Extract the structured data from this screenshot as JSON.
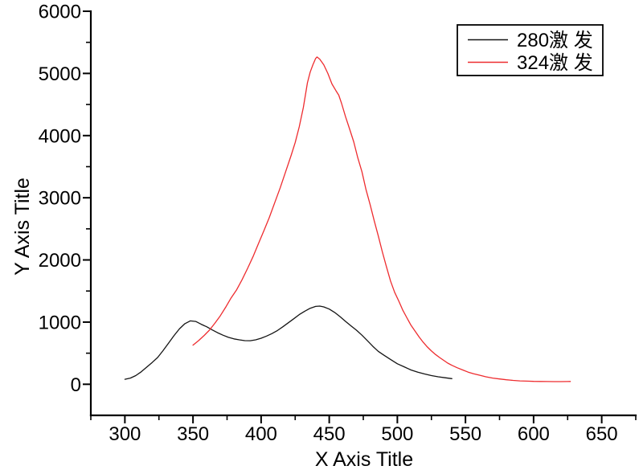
{
  "figure": {
    "background": "#ffffff"
  },
  "chart_data": {
    "type": "line",
    "title": "",
    "xlabel": "X Axis Title",
    "ylabel": "Y Axis Title",
    "xlim": [
      275,
      675
    ],
    "ylim": [
      -500,
      6000
    ],
    "x_major_ticks": [
      300,
      350,
      400,
      450,
      500,
      550,
      600,
      650
    ],
    "x_minor_tick_step": 25,
    "y_major_ticks": [
      0,
      1000,
      2000,
      3000,
      4000,
      5000,
      6000
    ],
    "y_minor_tick_step": 500,
    "grid": false,
    "axis_color": "#000000",
    "legend": {
      "position": "top-right",
      "border_color": "#000000",
      "background": "#ffffff",
      "entries": [
        {
          "label": "280激 发",
          "color": "#141414"
        },
        {
          "label": "324激 发",
          "color": "#ee2c2f"
        }
      ]
    },
    "series": [
      {
        "name": "280激 发",
        "color": "#141414",
        "points": [
          [
            300,
            80
          ],
          [
            304,
            100
          ],
          [
            308,
            140
          ],
          [
            312,
            200
          ],
          [
            316,
            275
          ],
          [
            320,
            350
          ],
          [
            324,
            430
          ],
          [
            328,
            540
          ],
          [
            332,
            660
          ],
          [
            336,
            780
          ],
          [
            340,
            890
          ],
          [
            344,
            975
          ],
          [
            348,
            1020
          ],
          [
            352,
            1010
          ],
          [
            356,
            965
          ],
          [
            360,
            925
          ],
          [
            364,
            875
          ],
          [
            368,
            830
          ],
          [
            372,
            790
          ],
          [
            376,
            755
          ],
          [
            380,
            730
          ],
          [
            384,
            715
          ],
          [
            388,
            702
          ],
          [
            392,
            700
          ],
          [
            396,
            715
          ],
          [
            400,
            740
          ],
          [
            404,
            775
          ],
          [
            408,
            815
          ],
          [
            412,
            865
          ],
          [
            416,
            925
          ],
          [
            420,
            990
          ],
          [
            424,
            1055
          ],
          [
            428,
            1120
          ],
          [
            432,
            1175
          ],
          [
            436,
            1222
          ],
          [
            440,
            1252
          ],
          [
            443,
            1258
          ],
          [
            446,
            1245
          ],
          [
            450,
            1210
          ],
          [
            454,
            1155
          ],
          [
            458,
            1085
          ],
          [
            462,
            1010
          ],
          [
            466,
            940
          ],
          [
            470,
            870
          ],
          [
            474,
            790
          ],
          [
            478,
            700
          ],
          [
            482,
            610
          ],
          [
            486,
            530
          ],
          [
            490,
            470
          ],
          [
            495,
            400
          ],
          [
            500,
            330
          ],
          [
            505,
            280
          ],
          [
            510,
            230
          ],
          [
            515,
            195
          ],
          [
            520,
            165
          ],
          [
            525,
            140
          ],
          [
            530,
            120
          ],
          [
            535,
            105
          ],
          [
            540,
            90
          ]
        ]
      },
      {
        "name": "324激 发",
        "color": "#ee2c2f",
        "points": [
          [
            350,
            630
          ],
          [
            354,
            700
          ],
          [
            358,
            780
          ],
          [
            362,
            870
          ],
          [
            366,
            980
          ],
          [
            370,
            1100
          ],
          [
            374,
            1240
          ],
          [
            378,
            1390
          ],
          [
            382,
            1520
          ],
          [
            386,
            1680
          ],
          [
            390,
            1860
          ],
          [
            394,
            2050
          ],
          [
            398,
            2260
          ],
          [
            402,
            2470
          ],
          [
            406,
            2680
          ],
          [
            410,
            2920
          ],
          [
            414,
            3160
          ],
          [
            418,
            3420
          ],
          [
            422,
            3680
          ],
          [
            425,
            3890
          ],
          [
            428,
            4140
          ],
          [
            431,
            4450
          ],
          [
            434,
            4850
          ],
          [
            436,
            5020
          ],
          [
            438,
            5140
          ],
          [
            440,
            5240
          ],
          [
            441,
            5265
          ],
          [
            443,
            5230
          ],
          [
            446,
            5140
          ],
          [
            449,
            5000
          ],
          [
            452,
            4830
          ],
          [
            455,
            4720
          ],
          [
            457,
            4650
          ],
          [
            459,
            4520
          ],
          [
            462,
            4300
          ],
          [
            465,
            4100
          ],
          [
            468,
            3900
          ],
          [
            471,
            3640
          ],
          [
            474,
            3420
          ],
          [
            477,
            3130
          ],
          [
            480,
            2890
          ],
          [
            483,
            2630
          ],
          [
            486,
            2390
          ],
          [
            489,
            2130
          ],
          [
            492,
            1890
          ],
          [
            495,
            1660
          ],
          [
            498,
            1480
          ],
          [
            501,
            1340
          ],
          [
            504,
            1190
          ],
          [
            507,
            1070
          ],
          [
            510,
            950
          ],
          [
            513,
            855
          ],
          [
            516,
            760
          ],
          [
            519,
            675
          ],
          [
            522,
            600
          ],
          [
            525,
            535
          ],
          [
            528,
            480
          ],
          [
            531,
            430
          ],
          [
            534,
            385
          ],
          [
            537,
            340
          ],
          [
            540,
            305
          ],
          [
            544,
            265
          ],
          [
            548,
            230
          ],
          [
            552,
            195
          ],
          [
            556,
            170
          ],
          [
            560,
            148
          ],
          [
            565,
            120
          ],
          [
            570,
            100
          ],
          [
            575,
            85
          ],
          [
            580,
            72
          ],
          [
            585,
            62
          ],
          [
            590,
            55
          ],
          [
            595,
            50
          ],
          [
            600,
            47
          ],
          [
            605,
            45
          ],
          [
            610,
            44
          ],
          [
            615,
            43
          ],
          [
            620,
            43
          ],
          [
            625,
            44
          ],
          [
            627,
            45
          ]
        ]
      }
    ]
  }
}
